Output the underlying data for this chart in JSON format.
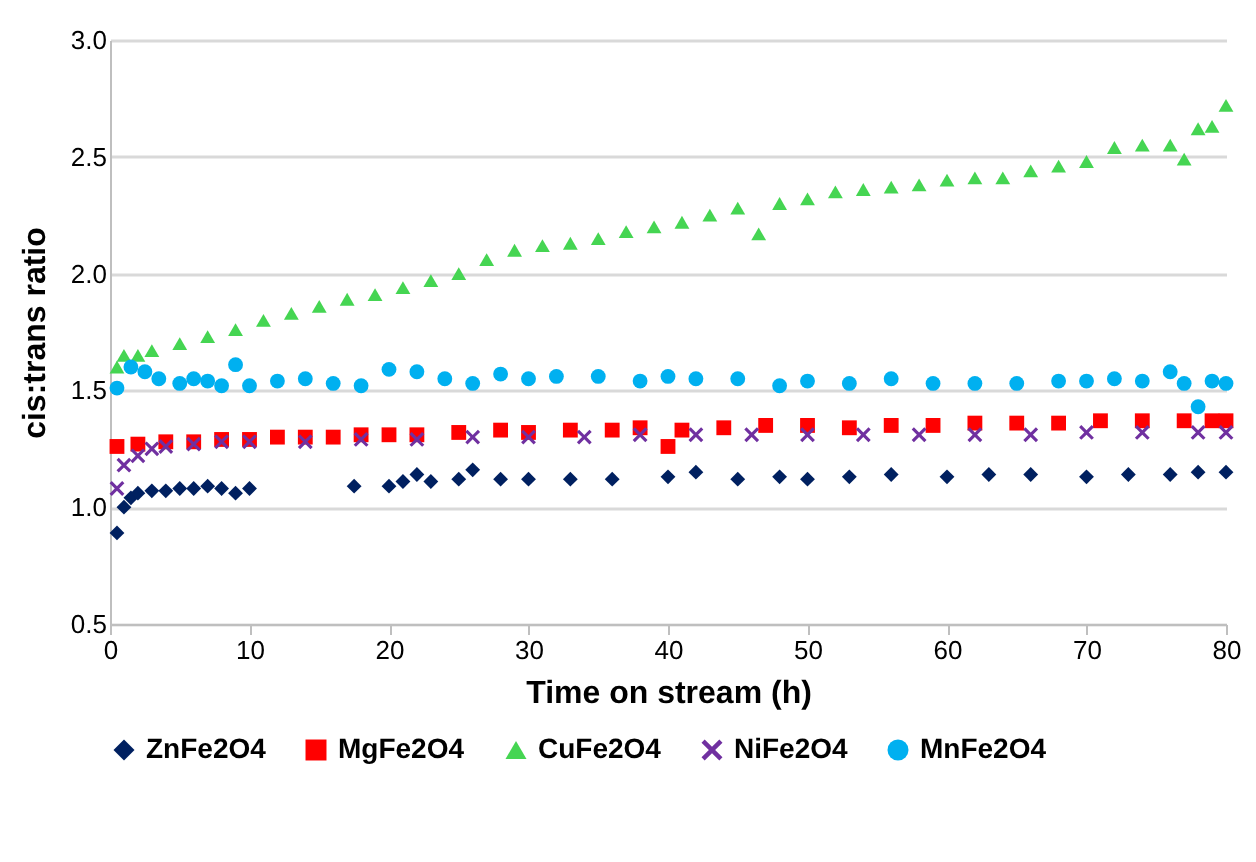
{
  "chart_data": {
    "type": "scatter",
    "xlabel": "Time on stream (h)",
    "ylabel": "cis:trans ratio",
    "xlim": [
      0,
      80
    ],
    "xticks": [
      0,
      10,
      20,
      30,
      40,
      50,
      60,
      70,
      80
    ],
    "ylim": [
      0.5,
      3.0
    ],
    "yticks": [
      {
        "value": 0.5,
        "label": "0.5"
      },
      {
        "value": 1,
        "label": "1.0"
      },
      {
        "value": 1.5,
        "label": "1.5"
      },
      {
        "value": 2,
        "label": "2.0"
      },
      {
        "value": 2.5,
        "label": "2.5"
      },
      {
        "value": 3,
        "label": "3.0"
      }
    ],
    "grid": "y",
    "legend": "bottom",
    "series": [
      {
        "name": "ZnFe2O4",
        "color": "#002060",
        "marker": "diamond",
        "x": [
          0.5,
          1,
          1.5,
          2,
          3,
          4,
          5,
          6,
          7,
          8,
          9,
          10,
          17.5,
          20,
          21,
          22,
          23,
          25,
          26,
          28,
          30,
          33,
          36,
          40,
          42,
          45,
          48,
          50,
          53,
          56,
          60,
          63,
          66,
          70,
          73,
          76,
          78,
          80
        ],
        "values": [
          0.89,
          1.0,
          1.04,
          1.06,
          1.07,
          1.07,
          1.08,
          1.08,
          1.09,
          1.08,
          1.06,
          1.08,
          1.09,
          1.09,
          1.11,
          1.14,
          1.11,
          1.12,
          1.16,
          1.12,
          1.12,
          1.12,
          1.12,
          1.13,
          1.15,
          1.12,
          1.13,
          1.12,
          1.13,
          1.14,
          1.13,
          1.14,
          1.14,
          1.13,
          1.14,
          1.14,
          1.15,
          1.15
        ]
      },
      {
        "name": "MgFe2O4",
        "color": "#ff0000",
        "marker": "square",
        "x": [
          0.5,
          2,
          4,
          6,
          8,
          10,
          12,
          14,
          16,
          18,
          20,
          22,
          25,
          28,
          30,
          33,
          36,
          38,
          40,
          41,
          44,
          47,
          50,
          53,
          56,
          59,
          62,
          65,
          68,
          71,
          74,
          77,
          79,
          80
        ],
        "values": [
          1.26,
          1.27,
          1.28,
          1.28,
          1.29,
          1.29,
          1.3,
          1.3,
          1.3,
          1.31,
          1.31,
          1.31,
          1.32,
          1.33,
          1.32,
          1.33,
          1.33,
          1.34,
          1.26,
          1.33,
          1.34,
          1.35,
          1.35,
          1.34,
          1.35,
          1.35,
          1.36,
          1.36,
          1.36,
          1.37,
          1.37,
          1.37,
          1.37,
          1.37
        ]
      },
      {
        "name": "CuFe2O4",
        "color": "#45d552",
        "marker": "triangle",
        "x": [
          0.5,
          1,
          2,
          3,
          5,
          7,
          9,
          11,
          13,
          15,
          17,
          19,
          21,
          23,
          25,
          27,
          29,
          31,
          33,
          35,
          37,
          39,
          41,
          43,
          45,
          46.5,
          48,
          50,
          52,
          54,
          56,
          58,
          60,
          62,
          64,
          66,
          68,
          70,
          72,
          74,
          76,
          77,
          78,
          79,
          80
        ],
        "values": [
          1.6,
          1.65,
          1.65,
          1.67,
          1.7,
          1.73,
          1.76,
          1.8,
          1.83,
          1.86,
          1.89,
          1.91,
          1.94,
          1.97,
          2.0,
          2.06,
          2.1,
          2.12,
          2.13,
          2.15,
          2.18,
          2.2,
          2.22,
          2.25,
          2.28,
          2.17,
          2.3,
          2.32,
          2.35,
          2.36,
          2.37,
          2.38,
          2.4,
          2.41,
          2.41,
          2.44,
          2.46,
          2.48,
          2.54,
          2.55,
          2.55,
          2.49,
          2.62,
          2.63,
          2.72
        ]
      },
      {
        "name": "NiFe2O4",
        "color": "#7030a0",
        "marker": "cross",
        "x": [
          0.5,
          1,
          2,
          3,
          4,
          6,
          8,
          10,
          14,
          18,
          22,
          26,
          30,
          34,
          38,
          42,
          46,
          50,
          54,
          58,
          62,
          66,
          70,
          74,
          78,
          80
        ],
        "values": [
          1.08,
          1.18,
          1.22,
          1.25,
          1.26,
          1.27,
          1.28,
          1.28,
          1.28,
          1.29,
          1.29,
          1.3,
          1.3,
          1.3,
          1.31,
          1.31,
          1.31,
          1.31,
          1.31,
          1.31,
          1.31,
          1.31,
          1.32,
          1.32,
          1.32,
          1.32
        ]
      },
      {
        "name": "MnFe2O4",
        "color": "#00b0f0",
        "marker": "circle",
        "x": [
          0.5,
          1.5,
          2.5,
          3.5,
          5,
          6,
          7,
          8,
          9,
          10,
          12,
          14,
          16,
          18,
          20,
          22,
          24,
          26,
          28,
          30,
          32,
          35,
          38,
          40,
          42,
          45,
          48,
          50,
          53,
          56,
          59,
          62,
          65,
          68,
          70,
          72,
          74,
          76,
          77,
          78,
          79,
          80
        ],
        "values": [
          1.51,
          1.6,
          1.58,
          1.55,
          1.53,
          1.55,
          1.54,
          1.52,
          1.61,
          1.52,
          1.54,
          1.55,
          1.53,
          1.52,
          1.59,
          1.58,
          1.55,
          1.53,
          1.57,
          1.55,
          1.56,
          1.56,
          1.54,
          1.56,
          1.55,
          1.55,
          1.52,
          1.54,
          1.53,
          1.55,
          1.53,
          1.53,
          1.53,
          1.54,
          1.54,
          1.55,
          1.54,
          1.58,
          1.53,
          1.43,
          1.54,
          1.53
        ]
      }
    ]
  }
}
